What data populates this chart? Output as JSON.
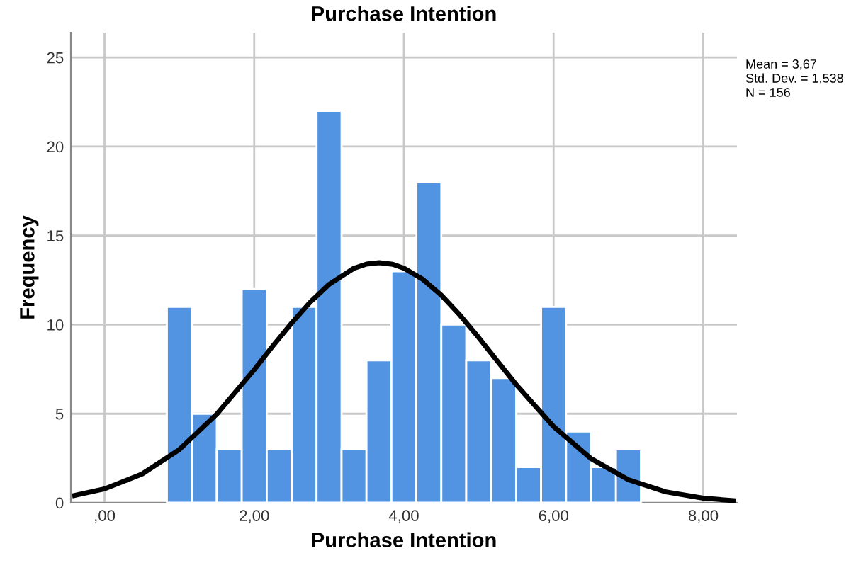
{
  "chart_data": {
    "type": "histogram",
    "title": "Purchase Intention",
    "xlabel": "Purchase Intention",
    "ylabel": "Frequency",
    "series": [
      {
        "color": "#5294e2",
        "bins": [
          0.833,
          1.167,
          1.5,
          1.833,
          2.167,
          2.5,
          2.833,
          3.167,
          3.5,
          3.833,
          4.167,
          4.5,
          4.833,
          5.167,
          5.5,
          5.833,
          6.167,
          6.5,
          6.833,
          7.167
        ],
        "values": [
          11,
          5,
          3,
          12,
          3,
          11,
          22,
          3,
          8,
          13,
          18,
          10,
          8,
          7,
          2,
          11,
          4,
          2,
          3
        ]
      },
      {
        "type": "line",
        "color": "#000000",
        "x": [
          -0.4,
          0,
          0.5,
          1,
          1.5,
          2,
          2.25,
          2.5,
          2.75,
          3,
          3.33,
          3.5,
          3.67,
          3.85,
          4,
          4.25,
          4.5,
          4.75,
          5,
          5.25,
          5.5,
          6,
          6.5,
          7,
          7.5,
          8,
          8.4
        ],
        "values": [
          0.41,
          0.78,
          1.61,
          2.99,
          4.98,
          7.47,
          8.81,
          10.09,
          11.27,
          12.26,
          13.16,
          13.4,
          13.48,
          13.39,
          13.17,
          12.55,
          11.65,
          10.53,
          9.27,
          7.95,
          6.64,
          4.28,
          2.48,
          1.29,
          0.61,
          0.26,
          0.12
        ]
      }
    ],
    "xlim": [
      -0.45,
      8.45
    ],
    "ylim": [
      0,
      26.4
    ],
    "xticks": [
      {
        "value": 0,
        "label": ",00"
      },
      {
        "value": 2,
        "label": "2,00"
      },
      {
        "value": 4,
        "label": "4,00"
      },
      {
        "value": 6,
        "label": "6,00"
      },
      {
        "value": 8,
        "label": "8,00"
      }
    ],
    "yticks": [
      0,
      5,
      10,
      15,
      20,
      25
    ],
    "grid": true,
    "legend": false,
    "annotations": [
      "Mean = 3,67",
      "Std. Dev. = 1,538",
      "N = 156"
    ]
  }
}
